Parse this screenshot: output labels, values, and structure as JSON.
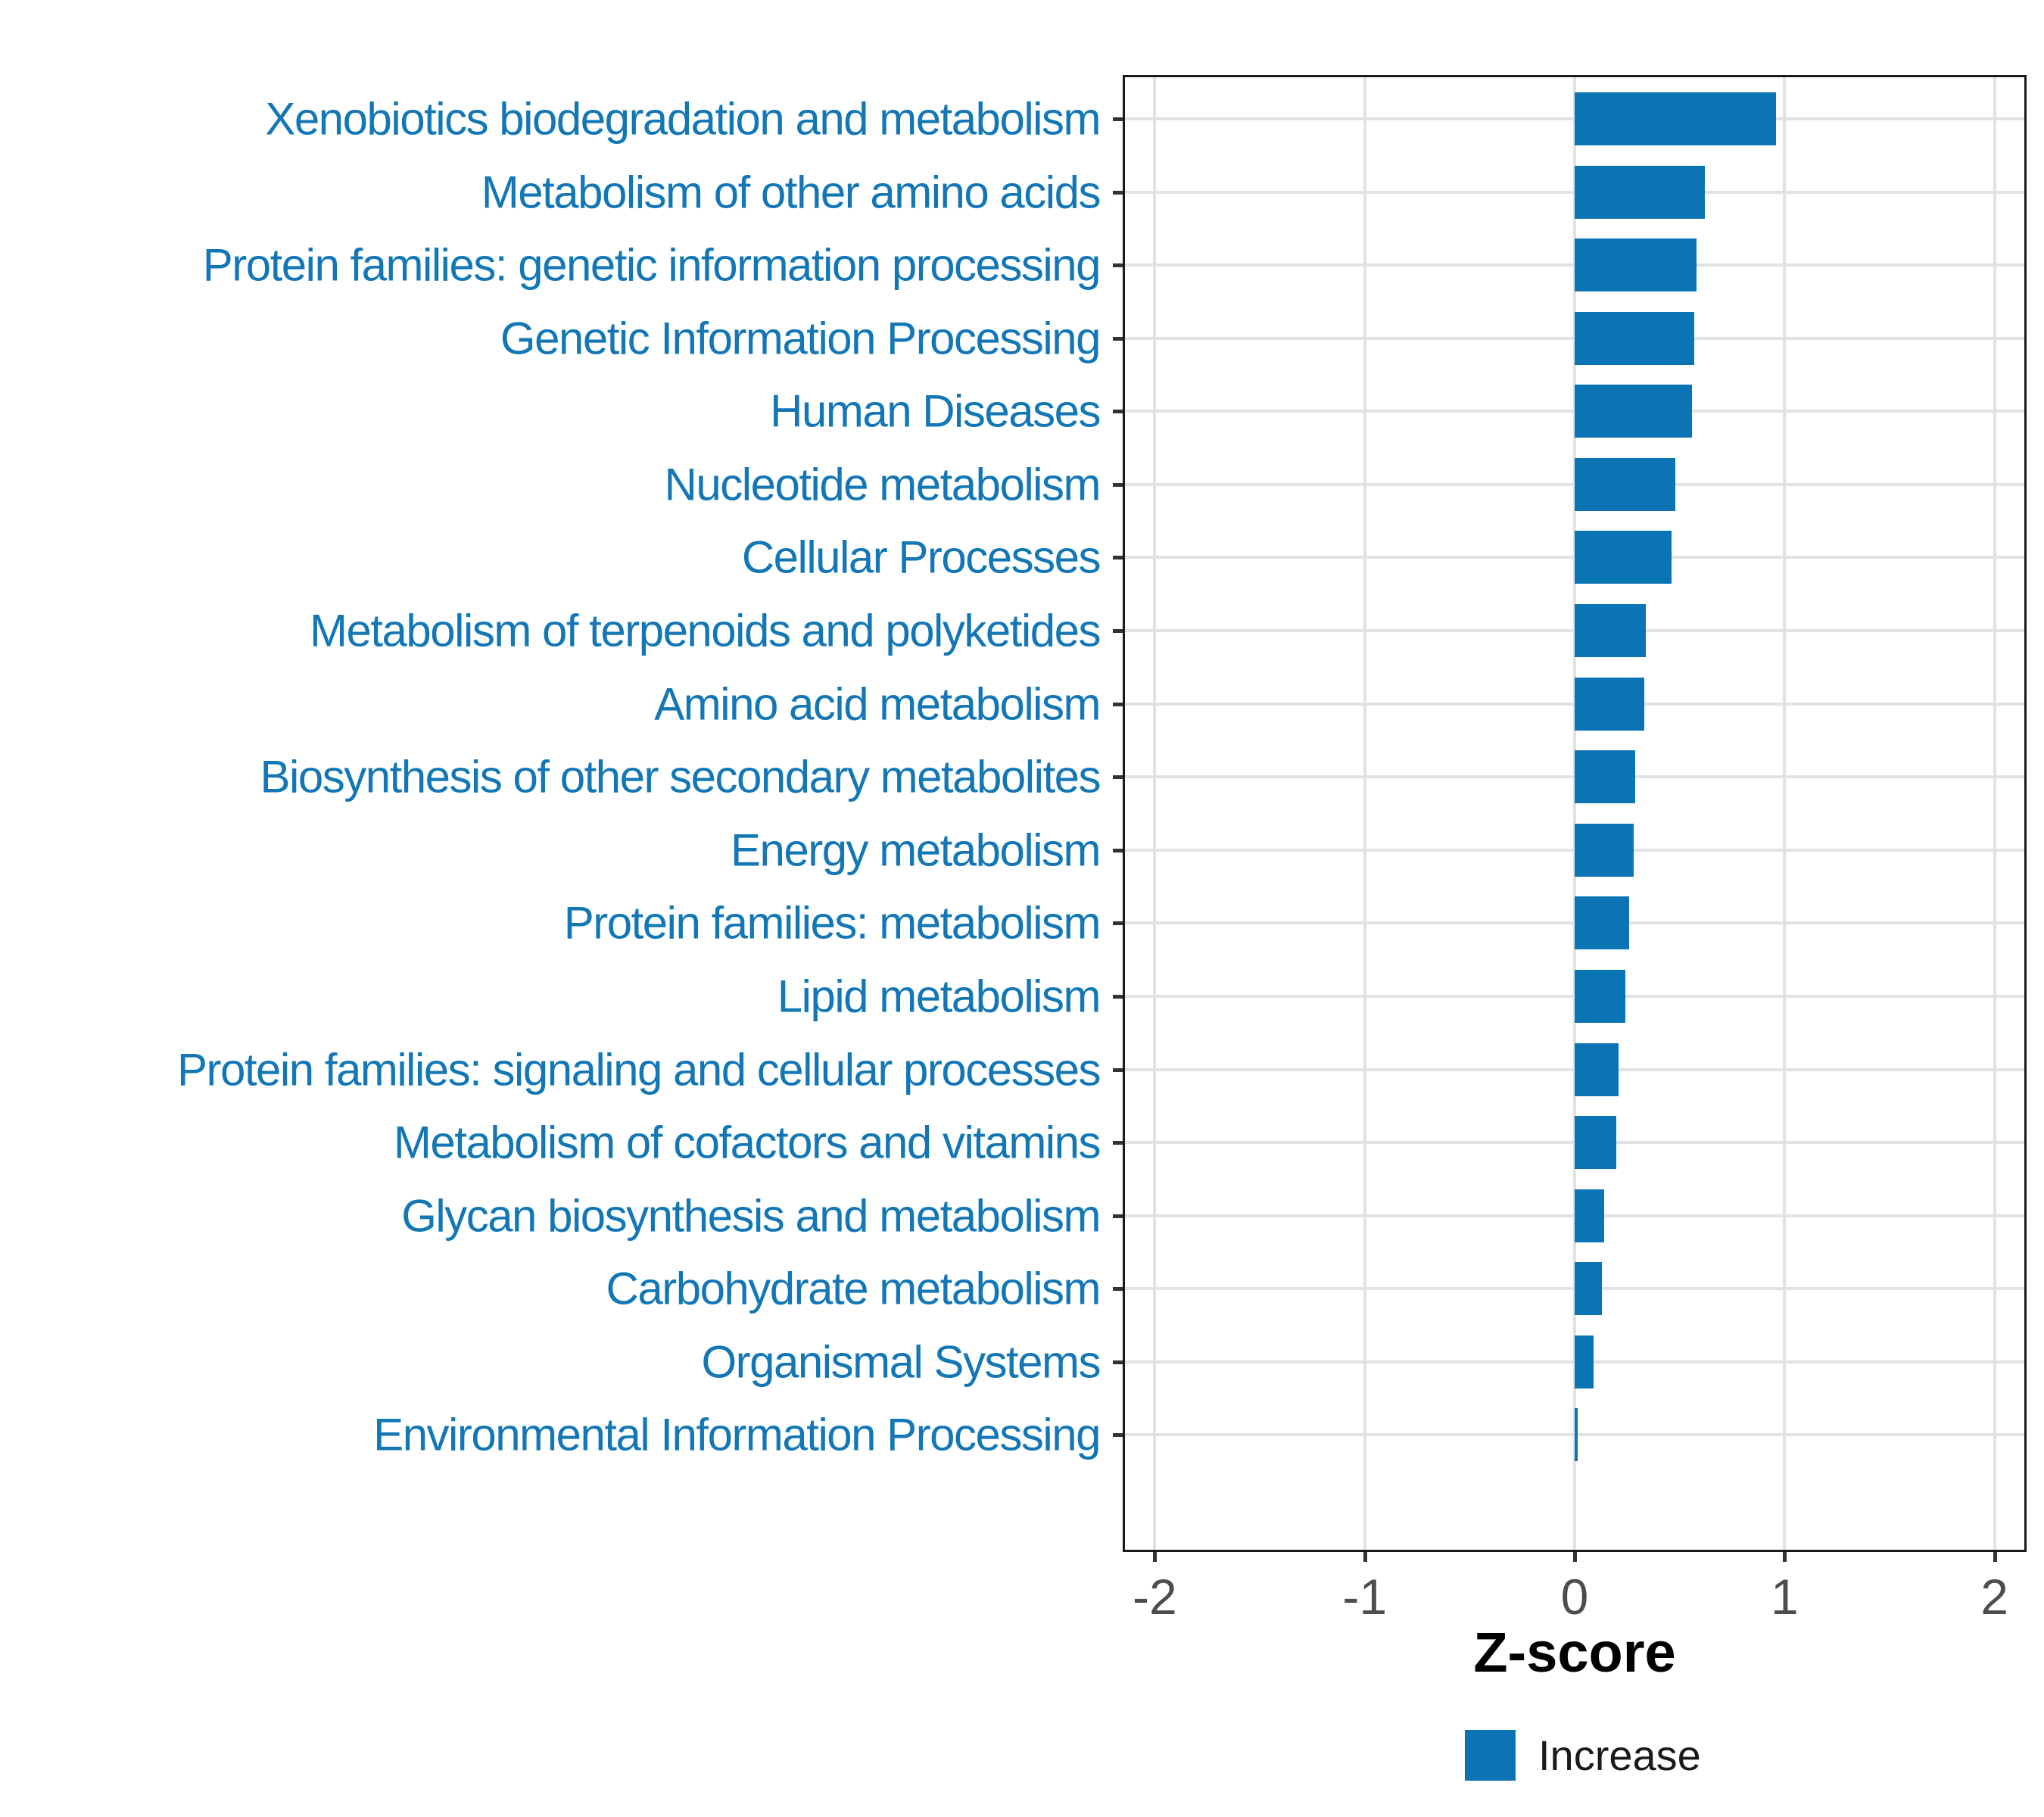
{
  "chart_data": {
    "type": "bar",
    "orientation": "horizontal",
    "title": "",
    "xlabel": "Z-score",
    "ylabel": "",
    "categories": [
      "Xenobiotics biodegradation and metabolism",
      "Metabolism of other amino acids",
      "Protein families: genetic information processing",
      "Genetic Information Processing",
      "Human Diseases",
      "Nucleotide metabolism",
      "Cellular Processes",
      "Metabolism of terpenoids and polyketides",
      "Amino acid metabolism",
      "Biosynthesis of other secondary metabolites",
      "Energy metabolism",
      "Protein families: metabolism",
      "Lipid metabolism",
      "Protein families: signaling and cellular processes",
      "Metabolism of cofactors and vitamins",
      "Glycan biosynthesis and metabolism",
      "Carbohydrate metabolism",
      "Organismal Systems",
      "Environmental Information Processing"
    ],
    "series": [
      {
        "name": "Increase",
        "values": [
          0.96,
          0.62,
          0.58,
          0.57,
          0.56,
          0.48,
          0.46,
          0.34,
          0.33,
          0.29,
          0.28,
          0.26,
          0.24,
          0.21,
          0.2,
          0.14,
          0.13,
          0.09,
          0.015
        ]
      }
    ],
    "x_ticks": [
      -2,
      -1,
      0,
      1,
      2
    ],
    "x_tick_labels": [
      "-2",
      "-1",
      "0",
      "1",
      "2"
    ],
    "xlim": [
      -2.15,
      2.15
    ],
    "grid": "major-only",
    "legend": {
      "position": "bottom-center",
      "items": [
        {
          "label": "Increase",
          "color": "#0a74b4"
        }
      ]
    },
    "colors": {
      "bar_increase": "#0a74b4",
      "category_label": "#1377b6",
      "gridline": "#e2e2e2",
      "panel_border": "#1a1a1a",
      "axis_tick": "#333333",
      "axis_tick_label": "#4d4d4d",
      "axis_title": "#000000",
      "legend_text": "#1a1a1a",
      "background": "#ffffff"
    }
  }
}
